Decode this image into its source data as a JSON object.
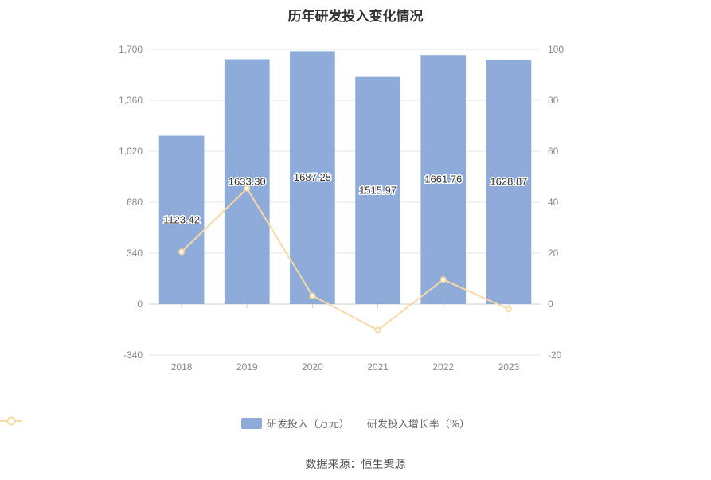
{
  "title": "历年研发投入变化情况",
  "source": "数据来源：恒生聚源",
  "colors": {
    "bar": "#8eabd9",
    "line": "#f7d9a4",
    "grid": "#e6e6e6",
    "axis_text": "#888888"
  },
  "chart_data": {
    "type": "bar",
    "title": "历年研发投入变化情况",
    "categories": [
      "2018",
      "2019",
      "2020",
      "2021",
      "2022",
      "2023"
    ],
    "series": [
      {
        "name": "研发投入（万元）",
        "type": "bar",
        "axis": "left",
        "values": [
          1123.42,
          1633.3,
          1687.28,
          1515.97,
          1661.76,
          1628.87
        ],
        "labels": [
          "1123.42",
          "1633.30",
          "1687.28",
          "1515.97",
          "1661.76",
          "1628.87"
        ]
      },
      {
        "name": "研发投入增长率（%）",
        "type": "line",
        "axis": "right",
        "values": [
          20.5,
          45.4,
          3.3,
          -10.2,
          9.6,
          -2.0
        ]
      }
    ],
    "y_left": {
      "ylim": [
        -340,
        1700
      ],
      "ticks": [
        "-340",
        "0",
        "340",
        "680",
        "1,020",
        "1,360",
        "1,700"
      ],
      "tick_values": [
        -340,
        0,
        340,
        680,
        1020,
        1360,
        1700
      ]
    },
    "y_right": {
      "ylim": [
        -20,
        100
      ],
      "ticks": [
        "-20",
        "0",
        "20",
        "40",
        "60",
        "80",
        "100"
      ],
      "tick_values": [
        -20,
        0,
        20,
        40,
        60,
        80,
        100
      ]
    },
    "grid": true,
    "legend_position": "bottom"
  }
}
